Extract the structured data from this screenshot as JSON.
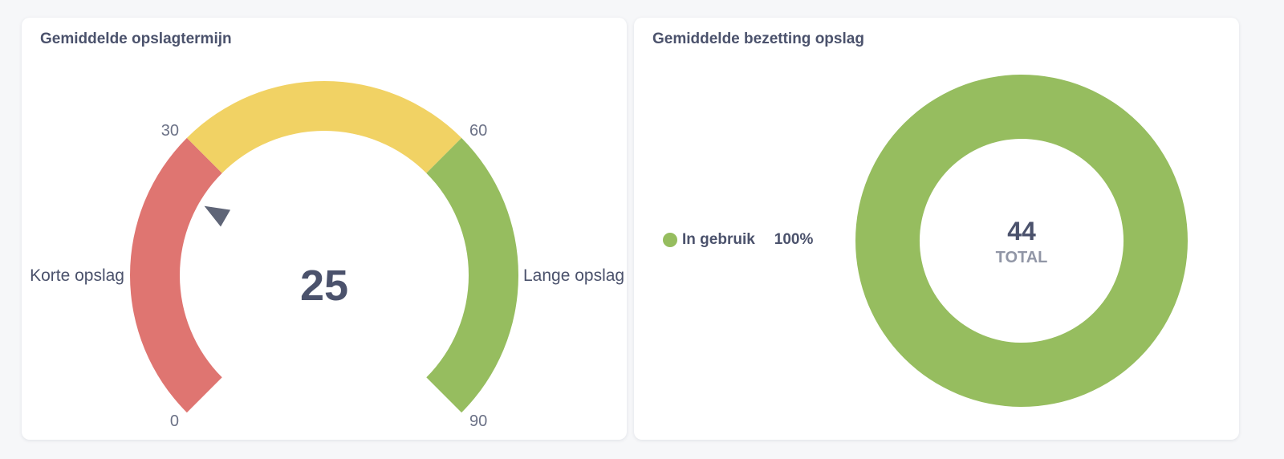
{
  "gauge_card": {
    "title": "Gemiddelde opslagtermijn"
  },
  "donut_card": {
    "title": "Gemiddelde bezetting opslag",
    "total": "44",
    "total_label": "TOTAL",
    "legend_label": "In gebruik",
    "legend_pct": "100%"
  },
  "chart_data": [
    {
      "type": "gauge",
      "title": "Gemiddelde opslagtermijn",
      "min": 0,
      "max": 90,
      "value": 25,
      "ticks": [
        0,
        30,
        60,
        90
      ],
      "segments": [
        {
          "from": 0,
          "to": 30,
          "color": "#df7571"
        },
        {
          "from": 30,
          "to": 60,
          "color": "#f1d264"
        },
        {
          "from": 60,
          "to": 90,
          "color": "#96bd5f"
        }
      ],
      "segment_labels": [
        "Korte opslag",
        "Lange opslag"
      ]
    },
    {
      "type": "pie",
      "title": "Gemiddelde bezetting opslag",
      "total": 44,
      "slices": [
        {
          "label": "In gebruik",
          "value": 44,
          "percent": 100,
          "color": "#96bd5f"
        }
      ]
    }
  ]
}
